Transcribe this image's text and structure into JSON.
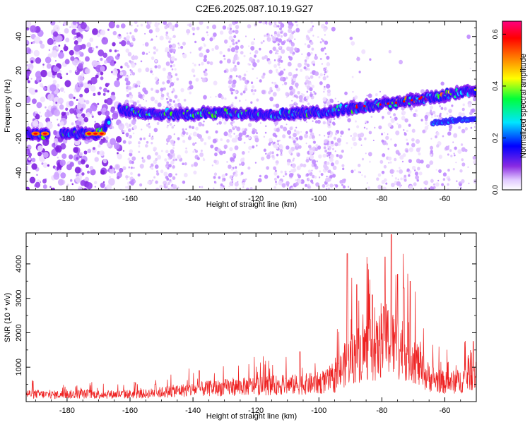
{
  "title": "C2E6.2025.087.10.19.G27",
  "chart_data": [
    {
      "type": "heatmap",
      "xlabel": "Height of straight line (km)",
      "ylabel": "Frequency (Hz)",
      "xlim": [
        -193,
        -50
      ],
      "ylim": [
        -50,
        49
      ],
      "xticks": [
        -180,
        -160,
        -140,
        -120,
        -100,
        -80,
        -60
      ],
      "yticks": [
        -40,
        -20,
        0,
        20,
        40
      ],
      "colorbar": {
        "label": "Normalized spectral amplitude",
        "range": [
          0,
          0.65
        ],
        "ticks": [
          0,
          0.2,
          0.4,
          0.6
        ],
        "colors": [
          "#ffffff",
          "#8a2be2",
          "#0000ff",
          "#00e5ff",
          "#00ff3a",
          "#ffff00",
          "#ff8000",
          "#ff0000",
          "#ff0080"
        ]
      },
      "ridge": {
        "x": [
          -193,
          -186,
          -178,
          -170,
          -164,
          -156,
          -146,
          -136,
          -126,
          -116,
          -106,
          -96,
          -86,
          -76,
          -66,
          -56,
          -50
        ],
        "freq": [
          -17,
          -17,
          -17,
          -17,
          -3,
          -5,
          -6,
          -5,
          -5,
          -6,
          -5,
          -4,
          -1,
          1,
          4,
          7,
          8
        ]
      },
      "secondary_ridge": {
        "x": [
          -64,
          -60,
          -56,
          -50
        ],
        "freq": [
          -11,
          -10,
          -9,
          -8
        ]
      }
    },
    {
      "type": "line",
      "xlabel": "Height of straight line (km)",
      "ylabel": "SNR (10 * v/v)",
      "xlim": [
        -193,
        -50
      ],
      "ylim": [
        0,
        4900
      ],
      "xticks": [
        -180,
        -160,
        -140,
        -120,
        -100,
        -80,
        -60
      ],
      "yticks": [
        1000,
        2000,
        3000,
        4000
      ],
      "series_color": "#ee2222",
      "x": [
        -193,
        -185,
        -175,
        -165,
        -155,
        -145,
        -135,
        -125,
        -115,
        -105,
        -100,
        -95,
        -91,
        -88,
        -85,
        -82,
        -80,
        -78,
        -76,
        -73,
        -70,
        -67,
        -64,
        -60,
        -55,
        -52,
        -50
      ],
      "y": [
        250,
        220,
        240,
        230,
        250,
        350,
        420,
        480,
        520,
        560,
        600,
        700,
        1300,
        1500,
        1700,
        1600,
        1900,
        2000,
        1800,
        1700,
        1500,
        900,
        750,
        600,
        650,
        900,
        850
      ],
      "spikes": [
        {
          "x": -91,
          "y": 4300
        },
        {
          "x": -88,
          "y": 3400
        },
        {
          "x": -83,
          "y": 3100
        },
        {
          "x": -79,
          "y": 4200
        },
        {
          "x": -77,
          "y": 4850
        },
        {
          "x": -75,
          "y": 3700
        },
        {
          "x": -73,
          "y": 3300
        },
        {
          "x": -71,
          "y": 3500
        },
        {
          "x": -106,
          "y": 1450
        },
        {
          "x": -152,
          "y": 500
        },
        {
          "x": -138,
          "y": 900
        },
        {
          "x": -51,
          "y": 1750
        }
      ]
    }
  ]
}
